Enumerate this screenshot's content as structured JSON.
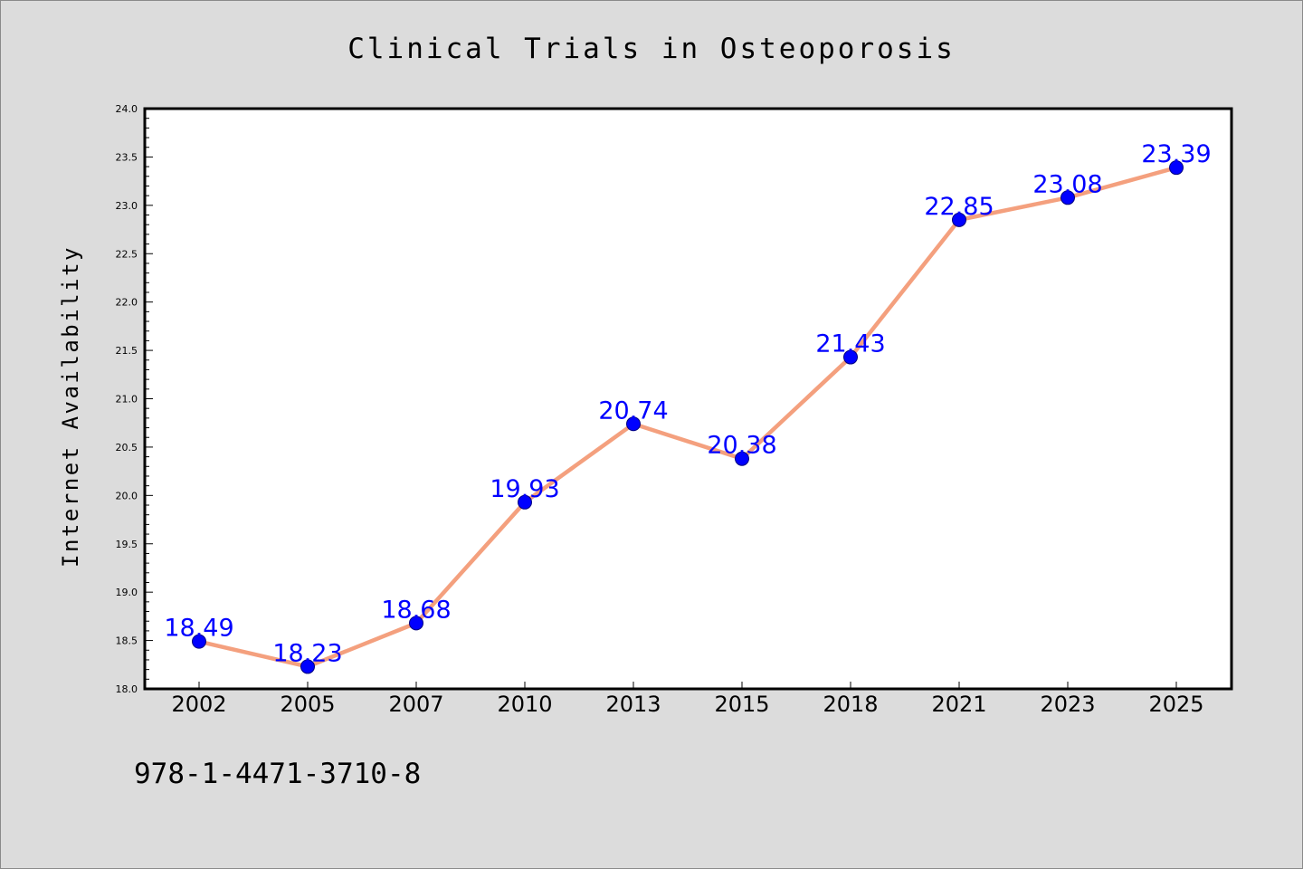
{
  "chart_data": {
    "type": "line",
    "title": "Clinical Trials in Osteoporosis",
    "xlabel": "",
    "ylabel": "Internet Availability",
    "categories": [
      "2002",
      "2005",
      "2007",
      "2010",
      "2013",
      "2015",
      "2018",
      "2021",
      "2023",
      "2025"
    ],
    "series": [
      {
        "values": [
          18.49,
          18.23,
          18.68,
          19.93,
          20.74,
          20.38,
          21.43,
          22.85,
          23.08,
          23.39
        ],
        "data_labels": [
          "18.49",
          "18.23",
          "18.68",
          "19.93",
          "20.74",
          "20.38",
          "21.43",
          "22.85",
          "23.08",
          "23.39"
        ]
      }
    ],
    "ylim": [
      18.0,
      24.0
    ],
    "yticks": [
      "18.0",
      "18.5",
      "19.0",
      "19.5",
      "20.0",
      "20.5",
      "21.0",
      "21.5",
      "22.0",
      "22.5",
      "23.0",
      "23.5",
      "24.0"
    ],
    "grid": false,
    "legend": "none",
    "colors": {
      "line": "#f4a07e",
      "marker": "#0000ff",
      "marker_edge": "#000080",
      "label": "#0000ff",
      "plot_background": "#ffffff",
      "page_background": "#dcdcdc"
    }
  },
  "footer": {
    "text": "978-1-4471-3710-8"
  }
}
